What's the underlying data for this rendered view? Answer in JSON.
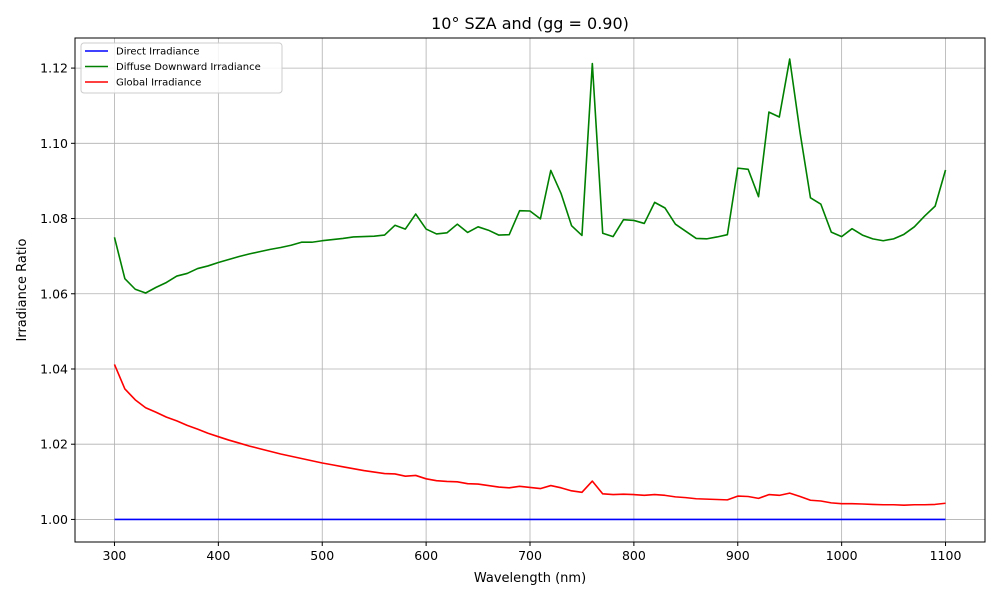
{
  "chart_data": {
    "type": "line",
    "title": "10° SZA and (gg = 0.90)",
    "xlabel": "Wavelength (nm)",
    "ylabel": "Irradiance Ratio",
    "xlim": [
      262,
      1138
    ],
    "ylim": [
      0.994,
      1.128
    ],
    "xticks": [
      300,
      400,
      500,
      600,
      700,
      800,
      900,
      1000,
      1100
    ],
    "yticks": [
      1.0,
      1.02,
      1.04,
      1.06,
      1.08,
      1.1,
      1.12
    ],
    "ytick_labels": [
      "1.00",
      "1.02",
      "1.04",
      "1.06",
      "1.08",
      "1.10",
      "1.12"
    ],
    "grid": true,
    "legend_position": "top-left",
    "x": [
      300,
      310,
      320,
      330,
      340,
      350,
      360,
      370,
      380,
      390,
      400,
      410,
      420,
      430,
      440,
      450,
      460,
      470,
      480,
      490,
      500,
      510,
      520,
      530,
      540,
      550,
      560,
      570,
      580,
      590,
      600,
      610,
      620,
      630,
      640,
      650,
      660,
      670,
      680,
      690,
      700,
      710,
      720,
      730,
      740,
      750,
      760,
      770,
      780,
      790,
      800,
      810,
      820,
      830,
      840,
      850,
      860,
      870,
      880,
      890,
      900,
      910,
      920,
      930,
      940,
      950,
      960,
      970,
      980,
      990,
      1000,
      1010,
      1020,
      1030,
      1040,
      1050,
      1060,
      1070,
      1080,
      1090,
      1100
    ],
    "series": [
      {
        "name": "Direct Irradiance",
        "color": "#0000ff",
        "values": [
          1.0,
          1.0,
          1.0,
          1.0,
          1.0,
          1.0,
          1.0,
          1.0,
          1.0,
          1.0,
          1.0,
          1.0,
          1.0,
          1.0,
          1.0,
          1.0,
          1.0,
          1.0,
          1.0,
          1.0,
          1.0,
          1.0,
          1.0,
          1.0,
          1.0,
          1.0,
          1.0,
          1.0,
          1.0,
          1.0,
          1.0,
          1.0,
          1.0,
          1.0,
          1.0,
          1.0,
          1.0,
          1.0,
          1.0,
          1.0,
          1.0,
          1.0,
          1.0,
          1.0,
          1.0,
          1.0,
          1.0,
          1.0,
          1.0,
          1.0,
          1.0,
          1.0,
          1.0,
          1.0,
          1.0,
          1.0,
          1.0,
          1.0,
          1.0,
          1.0,
          1.0,
          1.0,
          1.0,
          1.0,
          1.0,
          1.0,
          1.0,
          1.0,
          1.0,
          1.0,
          1.0,
          1.0,
          1.0,
          1.0,
          1.0,
          1.0,
          1.0,
          1.0,
          1.0,
          1.0,
          1.0
        ]
      },
      {
        "name": "Diffuse Downward Irradiance",
        "color": "#008000",
        "values": [
          1.075,
          1.064,
          1.0612,
          1.0602,
          1.0617,
          1.063,
          1.0647,
          1.0654,
          1.0667,
          1.0674,
          1.0683,
          1.0691,
          1.0699,
          1.0706,
          1.0712,
          1.0718,
          1.0723,
          1.0729,
          1.0737,
          1.0737,
          1.0741,
          1.0744,
          1.0747,
          1.0751,
          1.0752,
          1.0753,
          1.0756,
          1.0782,
          1.0772,
          1.0812,
          1.0772,
          1.0759,
          1.0762,
          1.0785,
          1.0763,
          1.0778,
          1.0769,
          1.0756,
          1.0757,
          1.0821,
          1.082,
          1.0799,
          1.0928,
          1.0866,
          1.0781,
          1.0755,
          1.1212,
          1.0761,
          1.0752,
          1.0797,
          1.0795,
          1.0787,
          1.0843,
          1.0828,
          1.0785,
          1.0766,
          1.0747,
          1.0746,
          1.0751,
          1.0757,
          1.0934,
          1.0931,
          1.0858,
          1.1083,
          1.107,
          1.1224,
          1.1028,
          1.0855,
          1.0838,
          1.0764,
          1.0752,
          1.0773,
          1.0756,
          1.0746,
          1.0741,
          1.0746,
          1.0758,
          1.0778,
          1.0807,
          1.0833,
          1.0929
        ]
      },
      {
        "name": "Global Irradiance",
        "color": "#ff0000",
        "values": [
          1.0412,
          1.0347,
          1.0318,
          1.0297,
          1.0285,
          1.0272,
          1.0262,
          1.025,
          1.024,
          1.0229,
          1.022,
          1.0211,
          1.0203,
          1.0195,
          1.0188,
          1.0181,
          1.0174,
          1.0168,
          1.0162,
          1.0156,
          1.015,
          1.0145,
          1.014,
          1.0135,
          1.013,
          1.0126,
          1.0122,
          1.0121,
          1.0115,
          1.0117,
          1.0108,
          1.0103,
          1.0101,
          1.01,
          1.0095,
          1.0094,
          1.009,
          1.0086,
          1.0084,
          1.0088,
          1.0085,
          1.0082,
          1.009,
          1.0084,
          1.0076,
          1.0072,
          1.0102,
          1.0068,
          1.0066,
          1.0067,
          1.0066,
          1.0064,
          1.0066,
          1.0064,
          1.006,
          1.0058,
          1.0055,
          1.0054,
          1.0053,
          1.0052,
          1.0062,
          1.0061,
          1.0056,
          1.0066,
          1.0064,
          1.007,
          1.0061,
          1.0051,
          1.0049,
          1.0044,
          1.0042,
          1.0042,
          1.0041,
          1.004,
          1.0039,
          1.0039,
          1.0038,
          1.0039,
          1.0039,
          1.004,
          1.0043
        ]
      }
    ]
  }
}
